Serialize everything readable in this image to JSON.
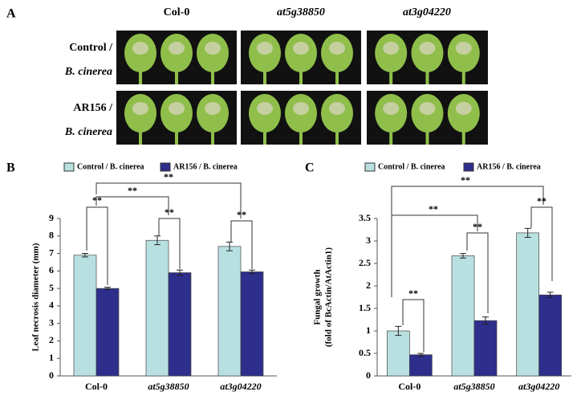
{
  "panel_a": {
    "letter": "A",
    "columns": [
      "Col-0",
      "at5g38850",
      "at3g04220"
    ],
    "rows": [
      {
        "line1": "Control /",
        "line2": "B. cinerea"
      },
      {
        "line1": "AR156 /",
        "line2": "B. cinerea"
      }
    ]
  },
  "chart_data": [
    {
      "type": "bar",
      "letter": "B",
      "ylabel": "Leaf necrosis diameter (mm)",
      "categories": [
        "Col-0",
        "at5g38850",
        "at3g04220"
      ],
      "series": [
        {
          "name": "Control / B. cinerea",
          "color": "#b9e0e1",
          "values": [
            6.9,
            7.75,
            7.4
          ],
          "errors": [
            0.1,
            0.25,
            0.25
          ]
        },
        {
          "name": "AR156 / B. cinerea",
          "color": "#2e2e8c",
          "values": [
            5.0,
            5.9,
            5.95
          ],
          "errors": [
            0.07,
            0.15,
            0.1
          ]
        }
      ],
      "ylim": [
        0,
        9
      ],
      "yticks": [
        0,
        1,
        2,
        3,
        4,
        5,
        6,
        7,
        8,
        9
      ],
      "annotations": [
        "**",
        "**",
        "**",
        "**",
        "**"
      ]
    },
    {
      "type": "bar",
      "letter": "C",
      "ylabel": [
        "Fungal growth",
        "(fold of BcActin/AtActin1)"
      ],
      "categories": [
        "Col-0",
        "at5g38850",
        "at3g04220"
      ],
      "series": [
        {
          "name": "Control / B. cinerea",
          "color": "#b9e0e1",
          "values": [
            1.0,
            2.67,
            3.18
          ],
          "errors": [
            0.1,
            0.05,
            0.1
          ]
        },
        {
          "name": "AR156 / B. cinerea",
          "color": "#2e2e8c",
          "values": [
            0.47,
            1.23,
            1.8
          ],
          "errors": [
            0.03,
            0.08,
            0.06
          ]
        }
      ],
      "ylim": [
        0,
        3.5
      ],
      "yticks": [
        0,
        0.5,
        1,
        1.5,
        2,
        2.5,
        3,
        3.5
      ],
      "annotations": [
        "**",
        "**",
        "**",
        "**",
        "**"
      ]
    }
  ]
}
